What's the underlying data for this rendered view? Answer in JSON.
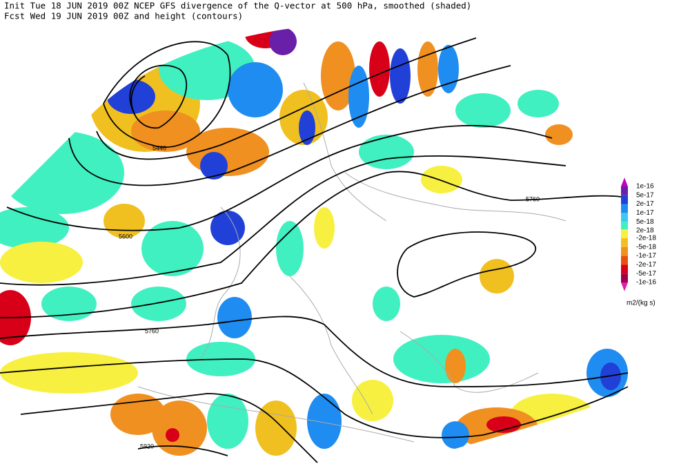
{
  "header": {
    "line1": "Init  Tue 18 JUN 2019 00Z  NCEP GFS divergence of the Q-vector at 500 hPa, smoothed (shaded)",
    "line2": "Fcst Wed 19 JUN 2019 00Z  and height (contours)"
  },
  "contour_labels": [
    "5440",
    "5600",
    "5760",
    "5760",
    "5920"
  ],
  "legend": {
    "labels": [
      "1e-16",
      "5e-17",
      "2e-17",
      "1e-17",
      "5e-18",
      "2e-18",
      "-2e-18",
      "-5e-18",
      "-1e-17",
      "-2e-17",
      "-5e-17",
      "-1e-16"
    ],
    "colors_positive": [
      "#c000c8",
      "#6a1fa8",
      "#2040d8",
      "#1e8cf0",
      "#3cc8f0",
      "#40f0c0"
    ],
    "colors_negative": [
      "#f8f040",
      "#f0c020",
      "#f09020",
      "#e85010",
      "#d80018",
      "#a00048",
      "#e020a8"
    ],
    "units": "m2/(kg s)"
  }
}
